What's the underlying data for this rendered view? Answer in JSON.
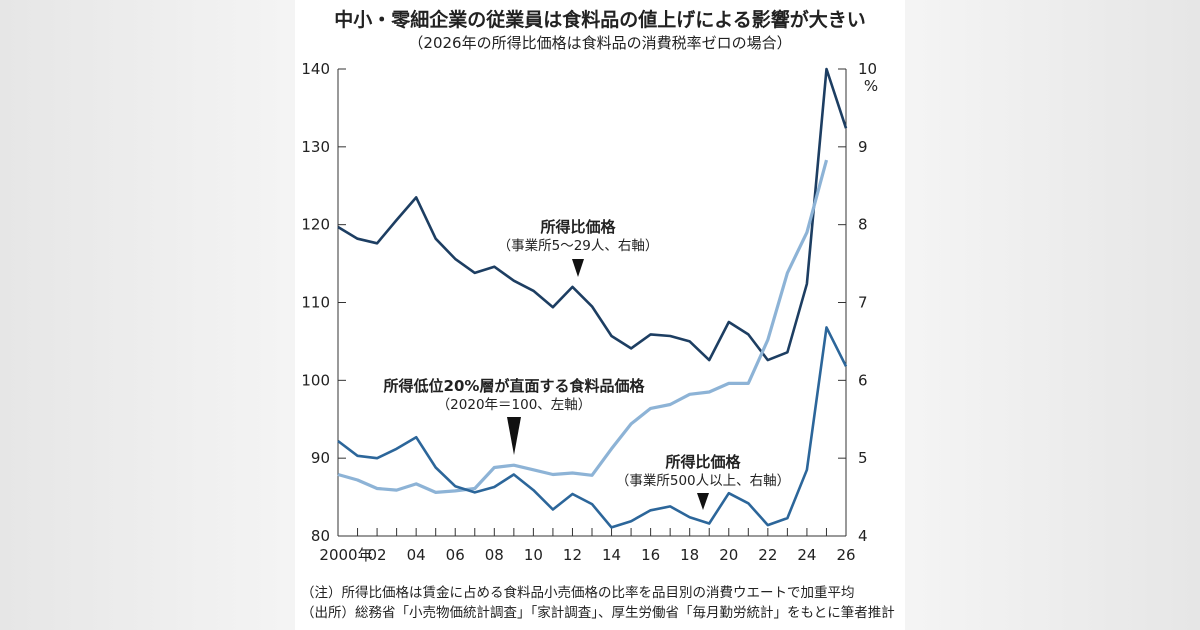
{
  "title": "中小・零細企業の従業員は食料品の値上げによる影響が大きい",
  "subtitle": "（2026年の所得比価格は食料品の消費税率ゼロの場合）",
  "notes": [
    "（注）所得比価格は賃金に占める食料品小売価格の比率を品目別の消費ウエートで加重平均",
    "（出所）総務省「小売物価統計調査」「家計調査」、厚生労働省「毎月勤労統計」をもとに筆者推計"
  ],
  "chart_data": {
    "type": "line",
    "title": "中小・零細企業の従業員は食料品の値上げによる影響が大きい",
    "x": [
      2000,
      2001,
      2002,
      2003,
      2004,
      2005,
      2006,
      2007,
      2008,
      2009,
      2010,
      2011,
      2012,
      2013,
      2014,
      2015,
      2016,
      2017,
      2018,
      2019,
      2020,
      2021,
      2022,
      2023,
      2024,
      2025,
      2026
    ],
    "x_tick_labels": [
      "2000年",
      "02",
      "04",
      "06",
      "08",
      "10",
      "12",
      "14",
      "16",
      "18",
      "20",
      "22",
      "24",
      "26"
    ],
    "y_left": {
      "range": [
        80,
        140
      ],
      "ticks": [
        "80",
        "90",
        "100",
        "110",
        "120",
        "130",
        "140"
      ]
    },
    "y_right": {
      "range": [
        4,
        10
      ],
      "ticks": [
        "4",
        "5",
        "6",
        "7",
        "8",
        "9",
        "10"
      ],
      "unit": "%"
    },
    "grid": false,
    "series": [
      {
        "name": "所得比価格（事業所5〜29人、右軸）",
        "axis": "right",
        "color": "#1d3e62",
        "values": [
          7.97,
          7.82,
          7.76,
          8.06,
          8.35,
          7.82,
          7.56,
          7.38,
          7.46,
          7.28,
          7.15,
          6.94,
          7.2,
          6.95,
          6.57,
          6.41,
          6.59,
          6.57,
          6.5,
          6.26,
          6.75,
          6.59,
          6.26,
          6.36,
          7.24,
          10.0,
          9.24
        ]
      },
      {
        "name": "所得低位20%層が直面する食料品価格（2020年＝100、左軸）",
        "axis": "left",
        "color": "#8db3d6",
        "values": [
          87.9,
          87.2,
          86.1,
          85.9,
          86.7,
          85.6,
          85.8,
          86.1,
          88.8,
          89.1,
          88.5,
          87.9,
          88.1,
          87.8,
          91.2,
          94.4,
          96.4,
          96.9,
          98.2,
          98.5,
          99.6,
          99.6,
          105.2,
          113.8,
          119.0,
          128.3,
          null
        ]
      },
      {
        "name": "所得比価格（事業所500人以上、右軸）",
        "axis": "right",
        "color": "#2c669a",
        "values": [
          5.22,
          5.03,
          5.0,
          5.12,
          5.27,
          4.88,
          4.64,
          4.56,
          4.63,
          4.79,
          4.59,
          4.34,
          4.54,
          4.41,
          4.11,
          4.19,
          4.33,
          4.38,
          4.24,
          4.16,
          4.55,
          4.42,
          4.14,
          4.23,
          4.85,
          6.68,
          6.18
        ]
      }
    ],
    "annotations": [
      {
        "title": "所得比価格",
        "detail": "（事業所5〜29人、右軸）"
      },
      {
        "title": "所得低位20%層が直面する食料品価格",
        "detail": "（2020年＝100、左軸）"
      },
      {
        "title": "所得比価格",
        "detail": "（事業所500人以上、右軸）"
      }
    ]
  }
}
